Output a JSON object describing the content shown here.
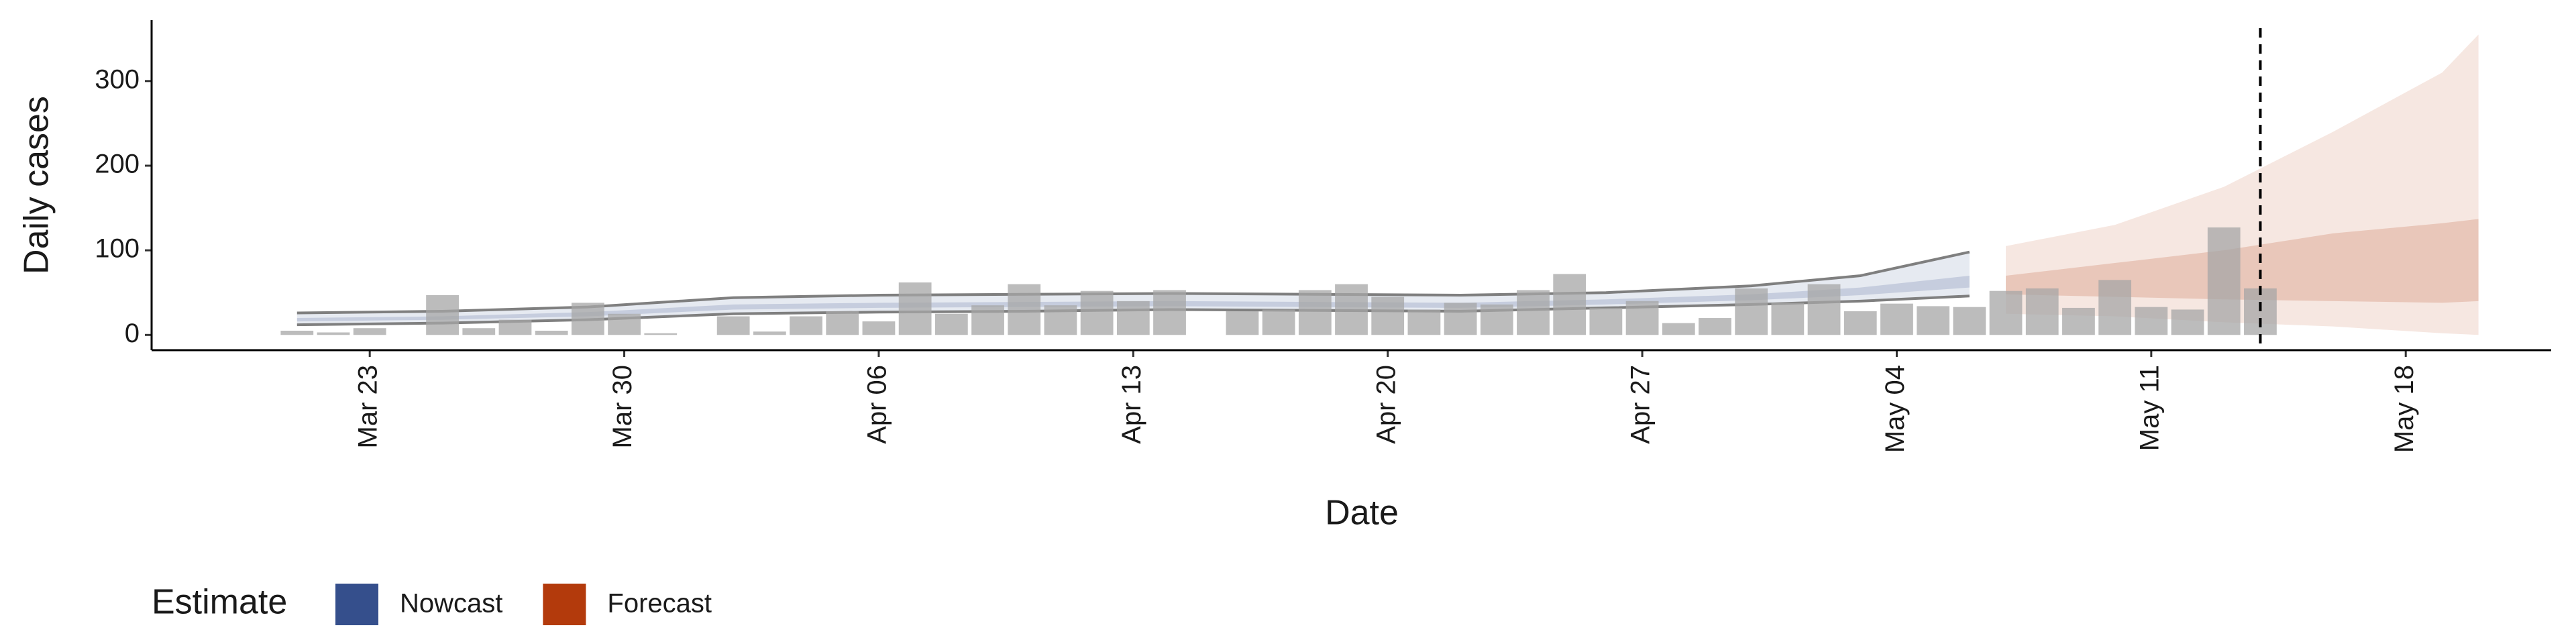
{
  "chart_data": {
    "type": "bar",
    "x_label": "Date",
    "y_label": "Daily cases",
    "xlim": [
      "Mar 17",
      "May 22"
    ],
    "xticks": [
      "Mar 23",
      "Mar 30",
      "Apr 06",
      "Apr 13",
      "Apr 20",
      "Apr 27",
      "May 04",
      "May 11",
      "May 18"
    ],
    "ylim": [
      -18,
      372
    ],
    "yticks": [
      0,
      100,
      200,
      300
    ],
    "bar_color": "#a6a6a6",
    "x": [
      "Mar 21",
      "Mar 22",
      "Mar 23",
      "Mar 24",
      "Mar 25",
      "Mar 26",
      "Mar 27",
      "Mar 28",
      "Mar 29",
      "Mar 30",
      "Mar 31",
      "Apr 01",
      "Apr 02",
      "Apr 03",
      "Apr 04",
      "Apr 05",
      "Apr 06",
      "Apr 07",
      "Apr 08",
      "Apr 09",
      "Apr 10",
      "Apr 11",
      "Apr 12",
      "Apr 13",
      "Apr 14",
      "Apr 15",
      "Apr 16",
      "Apr 17",
      "Apr 18",
      "Apr 19",
      "Apr 20",
      "Apr 21",
      "Apr 22",
      "Apr 23",
      "Apr 24",
      "Apr 25",
      "Apr 26",
      "Apr 27",
      "Apr 28",
      "Apr 29",
      "Apr 30",
      "May 01",
      "May 02",
      "May 03",
      "May 04",
      "May 05",
      "May 06",
      "May 07",
      "May 08",
      "May 09",
      "May 10",
      "May 11",
      "May 12",
      "May 13",
      "May 14"
    ],
    "values": [
      5,
      3,
      8,
      0,
      47,
      8,
      18,
      5,
      38,
      25,
      2,
      0,
      22,
      4,
      22,
      28,
      16,
      62,
      25,
      35,
      60,
      35,
      52,
      40,
      53,
      0,
      28,
      30,
      53,
      60,
      45,
      30,
      38,
      36,
      53,
      72,
      32,
      40,
      14,
      20,
      55,
      38,
      60,
      28,
      37,
      34,
      33,
      52,
      55,
      32,
      65,
      33,
      30,
      127,
      55
    ],
    "vline": "May 14",
    "legend_title": "Estimate",
    "bands": [
      {
        "name": "Nowcast",
        "color": "#354f8c",
        "x": [
          "Mar 21",
          "Mar 25",
          "Mar 29",
          "Apr 02",
          "Apr 06",
          "Apr 10",
          "Apr 14",
          "Apr 18",
          "Apr 22",
          "Apr 26",
          "Apr 30",
          "May 03",
          "May 06"
        ],
        "upper90": [
          26,
          28,
          33,
          44,
          47,
          48,
          49,
          48,
          47,
          50,
          58,
          70,
          98
        ],
        "lower90": [
          12,
          14,
          18,
          25,
          27,
          28,
          30,
          29,
          28,
          32,
          36,
          40,
          46
        ],
        "upper50": [
          20,
          22,
          27,
          36,
          38,
          39,
          40,
          39,
          38,
          42,
          48,
          56,
          70
        ],
        "lower50": [
          16,
          18,
          22,
          30,
          32,
          33,
          34,
          33,
          32,
          36,
          41,
          47,
          56
        ]
      },
      {
        "name": "Forecast",
        "color": "#b33a0c",
        "x": [
          "May 07",
          "May 10",
          "May 13",
          "May 16",
          "May 19",
          "May 20"
        ],
        "upper90": [
          105,
          130,
          175,
          240,
          310,
          355
        ],
        "lower90": [
          25,
          22,
          15,
          10,
          2,
          0
        ],
        "upper50": [
          70,
          85,
          100,
          120,
          132,
          137
        ],
        "lower50": [
          48,
          45,
          42,
          40,
          38,
          40
        ]
      }
    ]
  }
}
